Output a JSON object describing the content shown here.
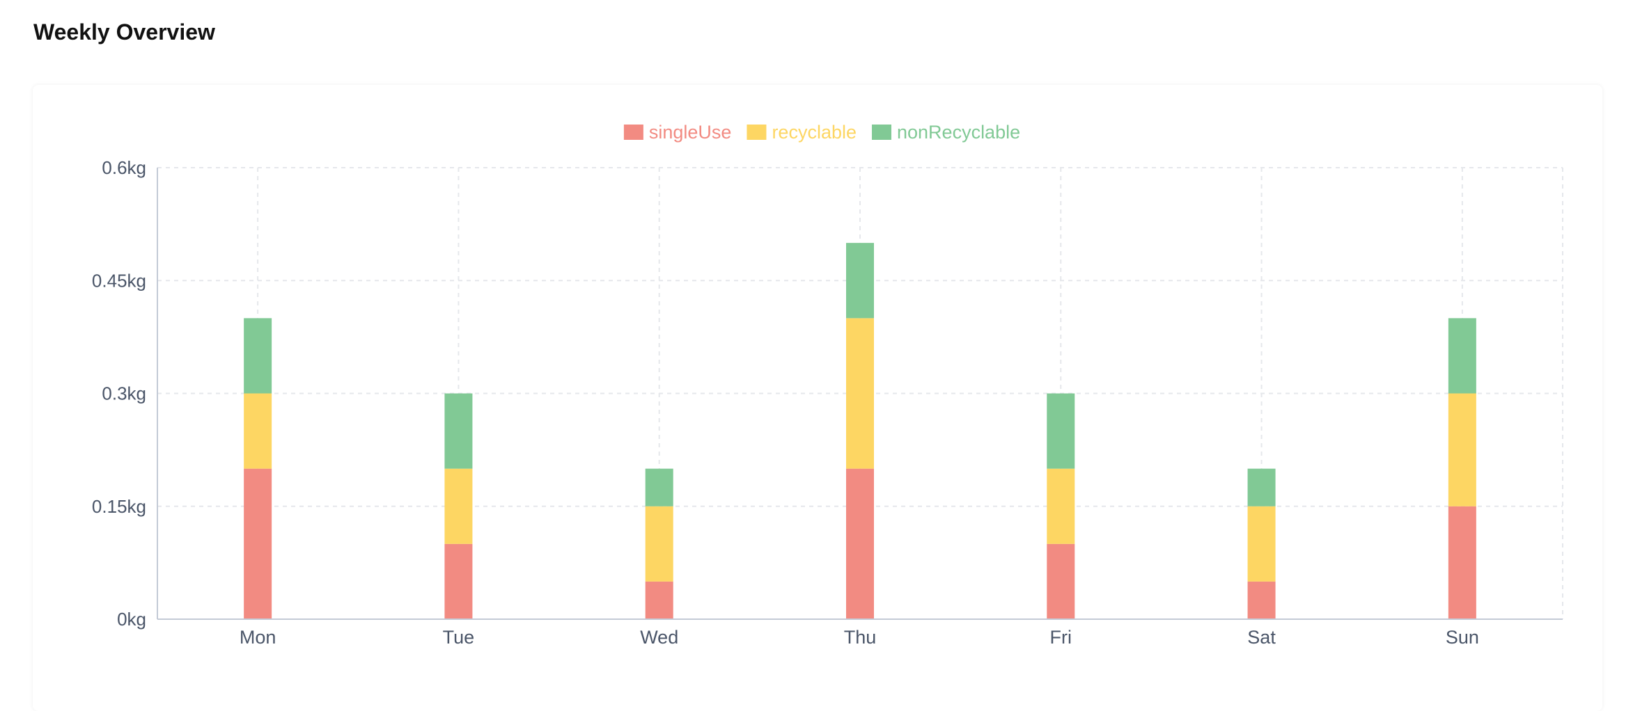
{
  "page": {
    "title": "Weekly Overview"
  },
  "chart_data": {
    "type": "bar",
    "stacked": true,
    "categories": [
      "Mon",
      "Tue",
      "Wed",
      "Thu",
      "Fri",
      "Sat",
      "Sun"
    ],
    "series": [
      {
        "name": "singleUse",
        "color": "#f28b82",
        "values": [
          0.2,
          0.1,
          0.05,
          0.2,
          0.1,
          0.05,
          0.15
        ]
      },
      {
        "name": "recyclable",
        "color": "#fdd663",
        "values": [
          0.1,
          0.1,
          0.1,
          0.2,
          0.1,
          0.1,
          0.15
        ]
      },
      {
        "name": "nonRecyclable",
        "color": "#81c995",
        "values": [
          0.1,
          0.1,
          0.05,
          0.1,
          0.1,
          0.05,
          0.1
        ]
      }
    ],
    "ylim": [
      0,
      0.6
    ],
    "yticks": [
      "0kg",
      "0.15kg",
      "0.3kg",
      "0.45kg",
      "0.6kg"
    ],
    "ytick_values": [
      0,
      0.15,
      0.3,
      0.45,
      0.6
    ],
    "grid": true,
    "legend_position": "top-center",
    "axis_color": "#c3cad6",
    "grid_color": "#e5e7eb",
    "tick_label_color": "#4a5568"
  }
}
